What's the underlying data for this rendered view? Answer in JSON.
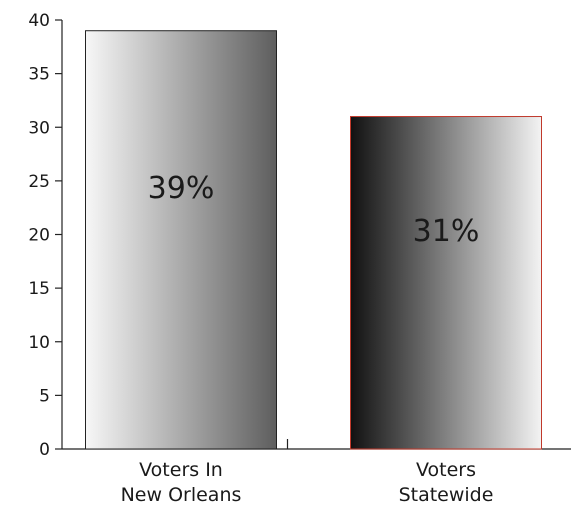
{
  "chart_data": {
    "type": "bar",
    "categories": [
      [
        "Voters In",
        "New Orleans"
      ],
      [
        "Voters",
        "Statewide"
      ]
    ],
    "values": [
      39,
      31
    ],
    "data_labels": [
      "39%",
      "31%"
    ],
    "ylim": [
      0,
      40
    ],
    "yticks": [
      0,
      5,
      10,
      15,
      20,
      25,
      30,
      35,
      40
    ],
    "ytick_labels": [
      "0",
      "5",
      "10",
      "15",
      "20",
      "25",
      "30",
      "35",
      "40"
    ],
    "grid": false,
    "bar_styles": [
      {
        "gradient": [
          "#f7f7f7",
          "#5e5e5e"
        ],
        "border": "#222222"
      },
      {
        "gradient": [
          "#111111",
          "#f3f3f3"
        ],
        "border": "#c0392b"
      }
    ]
  }
}
